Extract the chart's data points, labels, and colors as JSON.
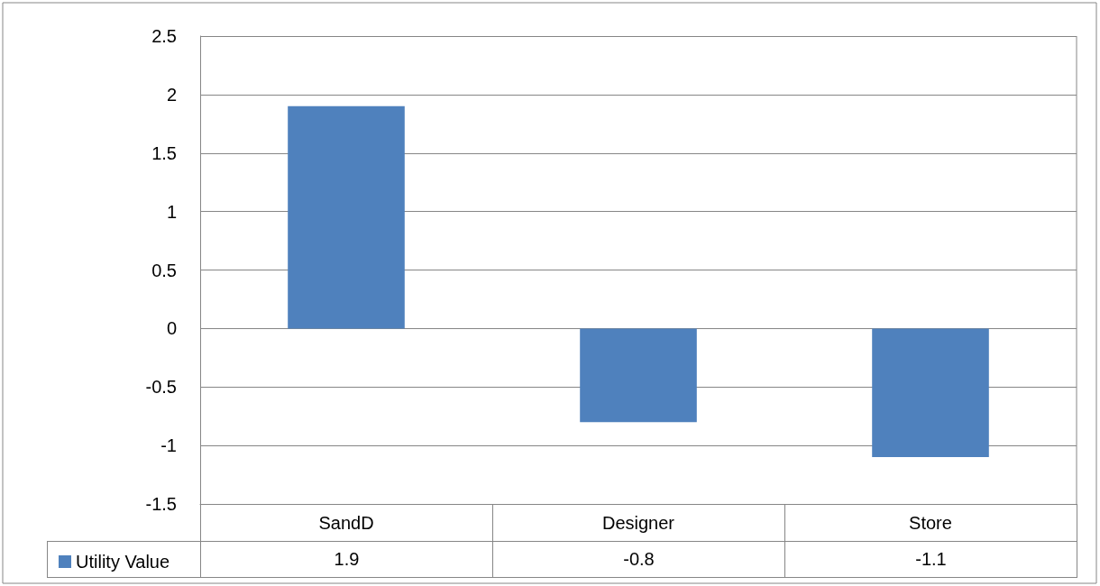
{
  "chart_data": {
    "type": "bar",
    "categories": [
      "SandD",
      "Designer",
      "Store"
    ],
    "series": [
      {
        "name": "Utility Value",
        "color": "#4f81bd",
        "values": [
          1.9,
          -0.8,
          -1.1
        ]
      }
    ],
    "ylim": [
      -1.5,
      2.5
    ],
    "yticks": [
      -1.5,
      -1,
      -0.5,
      0,
      0.5,
      1,
      1.5,
      2,
      2.5
    ],
    "grid": "y",
    "legend": "bottom left",
    "data_labels": true
  }
}
